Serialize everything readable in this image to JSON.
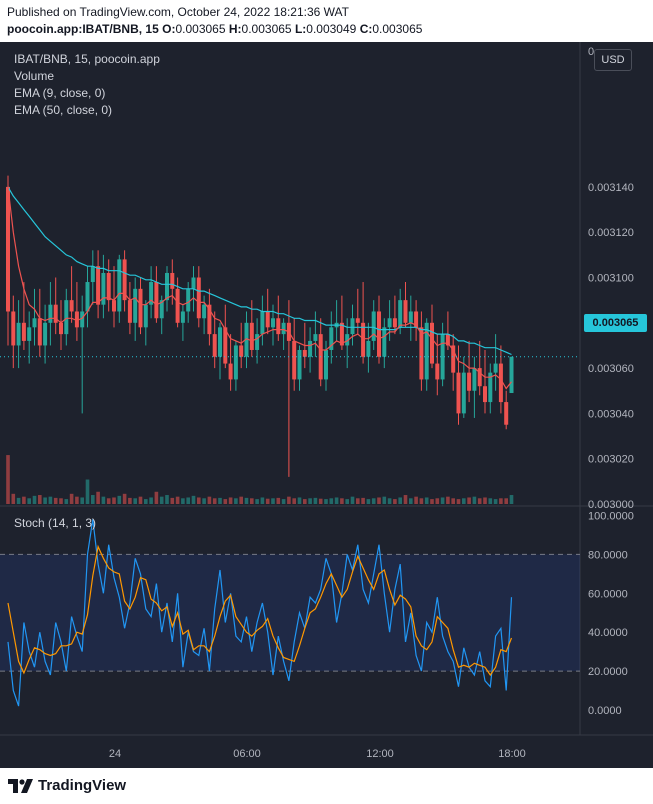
{
  "header": {
    "published": "Published on TradingView.com, October 24, 2022 18:21:36 WAT",
    "symbol": "poocoin.app:IBAT/BNB, 15",
    "o_label": "O:",
    "o_value": "0.003065",
    "h_label": "H:",
    "h_value": "0.003065",
    "l_label": "L:",
    "l_value": "0.003049",
    "c_label": "C:",
    "c_value": "0.003065"
  },
  "legend": {
    "title": "IBAT/BNB, 15, poocoin.app",
    "volume": "Volume",
    "ema9": "EMA (9, close, 0)",
    "ema50": "EMA (50, close, 0)",
    "stoch": "Stoch (14, 1, 3)"
  },
  "currency": "USD",
  "last_price": "0.003065",
  "footer": {
    "brand": "TradingView"
  },
  "colors": {
    "up": "#26a69a",
    "down": "#ef5350",
    "ema9": "#ef5350",
    "ema50": "#26c6da",
    "k_line": "#2196f3",
    "d_line": "#ff9800",
    "background": "#1e222d"
  },
  "chart_data": [
    {
      "type": "candlestick",
      "title": "IBAT/BNB, 15, poocoin.app",
      "ylim": [
        0.003,
        0.0032
      ],
      "y_ticks": [
        "0",
        "0.003140",
        "0.003120",
        "0.003100",
        "0.003080",
        "0.003060",
        "0.003040",
        "0.003020",
        "0.003000"
      ],
      "x_ticks": [
        "24",
        "06:00",
        "12:00",
        "18:00"
      ],
      "ohlc": [
        [
          0.00314,
          0.003145,
          0.00307,
          0.003085
        ],
        [
          0.003085,
          0.003092,
          0.00306,
          0.00307
        ],
        [
          0.00307,
          0.00309,
          0.00306,
          0.00308
        ],
        [
          0.00308,
          0.003098,
          0.003068,
          0.003072
        ],
        [
          0.003072,
          0.003085,
          0.003062,
          0.003078
        ],
        [
          0.003078,
          0.003095,
          0.00307,
          0.003082
        ],
        [
          0.003082,
          0.003095,
          0.003065,
          0.00307
        ],
        [
          0.00307,
          0.003088,
          0.003062,
          0.00308
        ],
        [
          0.00308,
          0.003098,
          0.00307,
          0.003088
        ],
        [
          0.003088,
          0.0031,
          0.003075,
          0.00308
        ],
        [
          0.00308,
          0.00309,
          0.003068,
          0.003075
        ],
        [
          0.003075,
          0.003095,
          0.00307,
          0.00309
        ],
        [
          0.00309,
          0.003105,
          0.00308,
          0.003085
        ],
        [
          0.003085,
          0.003098,
          0.003072,
          0.003078
        ],
        [
          0.003078,
          0.003092,
          0.00304,
          0.003085
        ],
        [
          0.003085,
          0.003105,
          0.003078,
          0.003098
        ],
        [
          0.003098,
          0.003112,
          0.003088,
          0.003105
        ],
        [
          0.003105,
          0.003112,
          0.003082,
          0.003088
        ],
        [
          0.003088,
          0.00311,
          0.003082,
          0.003102
        ],
        [
          0.003102,
          0.003108,
          0.003085,
          0.00309
        ],
        [
          0.00309,
          0.003105,
          0.003078,
          0.003085
        ],
        [
          0.003085,
          0.00311,
          0.00308,
          0.003108
        ],
        [
          0.003108,
          0.003112,
          0.003085,
          0.00309
        ],
        [
          0.00309,
          0.003098,
          0.003075,
          0.00308
        ],
        [
          0.00308,
          0.0031,
          0.003072,
          0.003095
        ],
        [
          0.003095,
          0.0031,
          0.003075,
          0.003078
        ],
        [
          0.003078,
          0.00309,
          0.00307,
          0.003088
        ],
        [
          0.003088,
          0.003105,
          0.003082,
          0.003098
        ],
        [
          0.003098,
          0.003105,
          0.00308,
          0.003082
        ],
        [
          0.003082,
          0.003092,
          0.003075,
          0.00309
        ],
        [
          0.00309,
          0.003105,
          0.003085,
          0.003102
        ],
        [
          0.003102,
          0.003108,
          0.003088,
          0.003095
        ],
        [
          0.003095,
          0.0031,
          0.003078,
          0.00308
        ],
        [
          0.00308,
          0.003088,
          0.003072,
          0.003085
        ],
        [
          0.003085,
          0.003098,
          0.00308,
          0.003095
        ],
        [
          0.003095,
          0.003105,
          0.003085,
          0.0031
        ],
        [
          0.0031,
          0.003105,
          0.003078,
          0.003082
        ],
        [
          0.003082,
          0.003092,
          0.003075,
          0.003088
        ],
        [
          0.003088,
          0.003095,
          0.00307,
          0.003075
        ],
        [
          0.003075,
          0.003085,
          0.00306,
          0.003065
        ],
        [
          0.003065,
          0.00308,
          0.003055,
          0.003078
        ],
        [
          0.003078,
          0.003088,
          0.00306,
          0.003062
        ],
        [
          0.003062,
          0.003075,
          0.00305,
          0.003055
        ],
        [
          0.003055,
          0.003072,
          0.00305,
          0.00307
        ],
        [
          0.00307,
          0.00308,
          0.00306,
          0.003065
        ],
        [
          0.003065,
          0.003085,
          0.00306,
          0.00308
        ],
        [
          0.00308,
          0.00309,
          0.003065,
          0.003068
        ],
        [
          0.003068,
          0.003082,
          0.003062,
          0.003075
        ],
        [
          0.003075,
          0.003092,
          0.00307,
          0.003085
        ],
        [
          0.003085,
          0.003095,
          0.003075,
          0.003078
        ],
        [
          0.003078,
          0.003088,
          0.00307,
          0.003082
        ],
        [
          0.003082,
          0.003092,
          0.003072,
          0.003075
        ],
        [
          0.003075,
          0.003082,
          0.003068,
          0.00308
        ],
        [
          0.00308,
          0.00309,
          0.003012,
          0.003072
        ],
        [
          0.003072,
          0.003082,
          0.00305,
          0.003055
        ],
        [
          0.003055,
          0.00307,
          0.00305,
          0.003068
        ],
        [
          0.003068,
          0.00308,
          0.00306,
          0.003065
        ],
        [
          0.003065,
          0.003078,
          0.003058,
          0.003072
        ],
        [
          0.003072,
          0.003085,
          0.003065,
          0.003075
        ],
        [
          0.003075,
          0.003082,
          0.003052,
          0.003055
        ],
        [
          0.003055,
          0.003072,
          0.00305,
          0.003068
        ],
        [
          0.003068,
          0.003085,
          0.003062,
          0.003078
        ],
        [
          0.003078,
          0.00309,
          0.003072,
          0.00308
        ],
        [
          0.00308,
          0.003092,
          0.003068,
          0.00307
        ],
        [
          0.00307,
          0.003082,
          0.00306,
          0.003075
        ],
        [
          0.003075,
          0.003088,
          0.00307,
          0.003082
        ],
        [
          0.003082,
          0.003095,
          0.003075,
          0.00308
        ],
        [
          0.00308,
          0.003098,
          0.003062,
          0.003065
        ],
        [
          0.003065,
          0.00308,
          0.003058,
          0.003072
        ],
        [
          0.003072,
          0.00309,
          0.003068,
          0.003085
        ],
        [
          0.003085,
          0.003092,
          0.003062,
          0.003065
        ],
        [
          0.003065,
          0.003082,
          0.00306,
          0.003078
        ],
        [
          0.003078,
          0.00309,
          0.003072,
          0.003082
        ],
        [
          0.003082,
          0.003092,
          0.003075,
          0.003078
        ],
        [
          0.003078,
          0.003095,
          0.003075,
          0.00309
        ],
        [
          0.00309,
          0.003098,
          0.003078,
          0.00308
        ],
        [
          0.00308,
          0.003092,
          0.003072,
          0.003085
        ],
        [
          0.003085,
          0.00309,
          0.003072,
          0.003078
        ],
        [
          0.003078,
          0.003085,
          0.00305,
          0.003055
        ],
        [
          0.003055,
          0.003082,
          0.00305,
          0.00308
        ],
        [
          0.00308,
          0.003088,
          0.00306,
          0.003062
        ],
        [
          0.003062,
          0.003075,
          0.003048,
          0.003055
        ],
        [
          0.003055,
          0.00308,
          0.003052,
          0.003075
        ],
        [
          0.003075,
          0.003085,
          0.003068,
          0.00307
        ],
        [
          0.00307,
          0.003075,
          0.00305,
          0.003058
        ],
        [
          0.003058,
          0.00307,
          0.003035,
          0.00304
        ],
        [
          0.00304,
          0.003065,
          0.003038,
          0.003058
        ],
        [
          0.003058,
          0.003072,
          0.003045,
          0.00305
        ],
        [
          0.00305,
          0.003065,
          0.003038,
          0.00306
        ],
        [
          0.00306,
          0.003072,
          0.003048,
          0.003052
        ],
        [
          0.003052,
          0.003068,
          0.00304,
          0.003045
        ],
        [
          0.003045,
          0.003062,
          0.00304,
          0.003058
        ],
        [
          0.003058,
          0.003075,
          0.00305,
          0.003062
        ],
        [
          0.003062,
          0.00307,
          0.00304,
          0.003045
        ],
        [
          0.003045,
          0.00305,
          0.003033,
          0.003035
        ],
        [
          0.003049,
          0.003065,
          0.003049,
          0.003065
        ]
      ],
      "volume": [
        120,
        25,
        15,
        18,
        14,
        20,
        22,
        16,
        18,
        15,
        14,
        12,
        25,
        18,
        16,
        60,
        22,
        30,
        18,
        14,
        16,
        20,
        25,
        15,
        14,
        18,
        12,
        16,
        30,
        18,
        22,
        15,
        18,
        14,
        16,
        20,
        16,
        14,
        18,
        14,
        15,
        12,
        16,
        14,
        18,
        15,
        14,
        12,
        16,
        13,
        14,
        15,
        12,
        18,
        14,
        16,
        12,
        14,
        15,
        13,
        12,
        14,
        16,
        14,
        12,
        18,
        14,
        15,
        12,
        14,
        16,
        18,
        14,
        12,
        16,
        22,
        14,
        18,
        14,
        16,
        12,
        14,
        16,
        18,
        14,
        12,
        14,
        16,
        18,
        14,
        16,
        14,
        12,
        14,
        14,
        22
      ],
      "ema9": [
        0.00314,
        0.00312,
        0.003105,
        0.003095,
        0.003088,
        0.003086,
        0.003082,
        0.003081,
        0.003082,
        0.003082,
        0.00308,
        0.003082,
        0.003082,
        0.003081,
        0.003082,
        0.003085,
        0.003089,
        0.003089,
        0.003091,
        0.003091,
        0.00309,
        0.003093,
        0.003093,
        0.00309,
        0.003091,
        0.003088,
        0.003088,
        0.00309,
        0.003088,
        0.003089,
        0.003091,
        0.003092,
        0.003089,
        0.003088,
        0.003089,
        0.003091,
        0.003089,
        0.003089,
        0.003086,
        0.003082,
        0.003081,
        0.003077,
        0.003073,
        0.003072,
        0.003071,
        0.003073,
        0.003072,
        0.003073,
        0.003075,
        0.003076,
        0.003077,
        0.003077,
        0.003077,
        0.003076,
        0.003072,
        0.003071,
        0.00307,
        0.00307,
        0.003071,
        0.003068,
        0.003068,
        0.00307,
        0.003072,
        0.003071,
        0.003072,
        0.003074,
        0.003075,
        0.003073,
        0.003073,
        0.003075,
        0.003073,
        0.003074,
        0.003076,
        0.003076,
        0.003079,
        0.003079,
        0.00308,
        0.003079,
        0.003075,
        0.003076,
        0.003073,
        0.00307,
        0.003071,
        0.003071,
        0.003068,
        0.003063,
        0.003062,
        0.00306,
        0.00306,
        0.003058,
        0.003056,
        0.003056,
        0.003057,
        0.003055,
        0.003051,
        0.003054
      ],
      "ema50": [
        0.00314,
        0.003136,
        0.003133,
        0.00313,
        0.003127,
        0.003124,
        0.003121,
        0.003118,
        0.003116,
        0.003114,
        0.003112,
        0.00311,
        0.003109,
        0.003107,
        0.003106,
        0.003105,
        0.003105,
        0.003104,
        0.003104,
        0.003103,
        0.003103,
        0.003103,
        0.003102,
        0.003101,
        0.003101,
        0.0031,
        0.003099,
        0.003099,
        0.003098,
        0.003097,
        0.003097,
        0.003097,
        0.003096,
        0.003095,
        0.003095,
        0.003095,
        0.003094,
        0.003094,
        0.003093,
        0.003092,
        0.003091,
        0.00309,
        0.003089,
        0.003088,
        0.003087,
        0.003087,
        0.003086,
        0.003086,
        0.003085,
        0.003085,
        0.003085,
        0.003084,
        0.003084,
        0.003083,
        0.003082,
        0.003082,
        0.003081,
        0.003081,
        0.003081,
        0.00308,
        0.003079,
        0.003079,
        0.003079,
        0.003079,
        0.003078,
        0.003078,
        0.003078,
        0.003078,
        0.003078,
        0.003078,
        0.003077,
        0.003077,
        0.003077,
        0.003077,
        0.003078,
        0.003078,
        0.003078,
        0.003078,
        0.003077,
        0.003077,
        0.003076,
        0.003075,
        0.003075,
        0.003075,
        0.003074,
        0.003072,
        0.003072,
        0.003071,
        0.003071,
        0.00307,
        0.003069,
        0.003069,
        0.003069,
        0.003068,
        0.003067,
        0.003066
      ]
    },
    {
      "type": "line",
      "title": "Stoch (14, 1, 3)",
      "ylim": [
        -10,
        105
      ],
      "y_ticks": [
        "100.0000",
        "80.0000",
        "60.0000",
        "40.0000",
        "20.0000",
        "0.0000"
      ],
      "bands": [
        20,
        80
      ],
      "series": [
        {
          "name": "%K",
          "color": "#2196f3",
          "values": [
            35,
            10,
            2,
            45,
            30,
            22,
            40,
            25,
            18,
            45,
            35,
            20,
            48,
            38,
            30,
            80,
            98,
            75,
            60,
            85,
            68,
            58,
            42,
            55,
            78,
            70,
            52,
            48,
            65,
            40,
            55,
            35,
            60,
            22,
            40,
            30,
            28,
            42,
            20,
            52,
            72,
            45,
            60,
            38,
            35,
            48,
            30,
            45,
            55,
            40,
            18,
            38,
            25,
            15,
            35,
            50,
            42,
            58,
            55,
            62,
            78,
            70,
            45,
            60,
            80,
            72,
            85,
            62,
            55,
            70,
            85,
            60,
            40,
            62,
            75,
            35,
            50,
            28,
            20,
            45,
            40,
            58,
            38,
            30,
            25,
            12,
            32,
            22,
            18,
            30,
            15,
            12,
            38,
            42,
            10,
            58
          ]
        },
        {
          "name": "%D",
          "color": "#ff9800",
          "values": [
            55,
            40,
            25,
            19,
            26,
            32,
            31,
            29,
            28,
            29,
            33,
            33,
            34,
            40,
            39,
            49,
            69,
            84,
            78,
            73,
            71,
            70,
            56,
            52,
            58,
            68,
            67,
            57,
            55,
            51,
            53,
            43,
            50,
            39,
            41,
            31,
            33,
            33,
            30,
            38,
            48,
            56,
            59,
            48,
            44,
            40,
            38,
            41,
            43,
            47,
            38,
            32,
            27,
            26,
            25,
            33,
            42,
            50,
            52,
            58,
            65,
            70,
            64,
            58,
            62,
            71,
            79,
            73,
            67,
            62,
            70,
            72,
            62,
            54,
            59,
            57,
            53,
            38,
            33,
            31,
            35,
            48,
            45,
            42,
            31,
            22,
            23,
            22,
            24,
            23,
            22,
            18,
            22,
            31,
            30,
            37
          ]
        }
      ]
    }
  ]
}
